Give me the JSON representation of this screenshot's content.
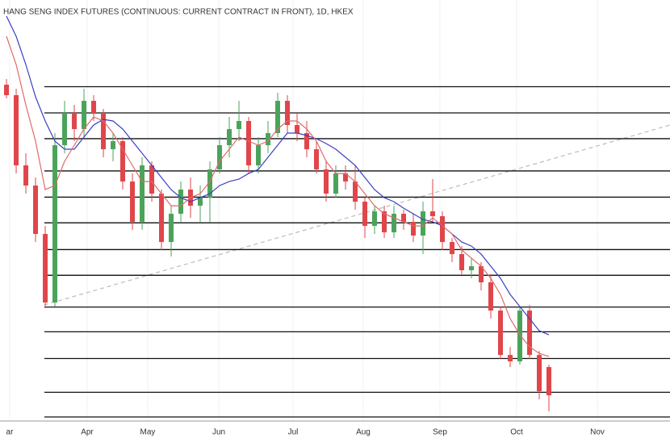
{
  "chart_data": {
    "type": "candlestick",
    "title": "HANG SENG INDEX FUTURES (CONTINUOUS: CURRENT CONTRACT IN FRONT), 1D, HKEX",
    "ylim": [
      15900,
      24250
    ],
    "xlim": [
      -0.67,
      68.5
    ],
    "xticks": [
      {
        "value": 0.33,
        "label": "ar"
      },
      {
        "value": 8.33,
        "label": "Apr"
      },
      {
        "value": 14.58,
        "label": "May"
      },
      {
        "value": 21.92,
        "label": "Jun"
      },
      {
        "value": 29.58,
        "label": "Jul"
      },
      {
        "value": 36.83,
        "label": "Aug"
      },
      {
        "value": 44.75,
        "label": "Sep"
      },
      {
        "value": 52.67,
        "label": "Oct"
      },
      {
        "value": 61,
        "label": "Nov"
      }
    ],
    "up_color": "#4ba35a",
    "down_color": "#e0454a",
    "ohlc": [
      [
        22570,
        22682,
        22298,
        22362
      ],
      [
        22362,
        22490,
        20810,
        20970
      ],
      [
        20970,
        21210,
        20410,
        20570
      ],
      [
        20570,
        20730,
        19450,
        19610
      ],
      [
        19610,
        19770,
        18138,
        18250
      ],
      [
        18250,
        21610,
        18170,
        21370
      ],
      [
        21370,
        22250,
        21210,
        22010
      ],
      [
        22010,
        22170,
        21450,
        21690
      ],
      [
        21690,
        22490,
        21530,
        22250
      ],
      [
        22250,
        22362,
        21850,
        22010
      ],
      [
        22010,
        22090,
        21130,
        21290
      ],
      [
        21290,
        21610,
        21050,
        21450
      ],
      [
        21450,
        21530,
        20490,
        20650
      ],
      [
        20650,
        20810,
        19690,
        19850
      ],
      [
        19850,
        21130,
        19690,
        20970
      ],
      [
        20970,
        21050,
        20250,
        20410
      ],
      [
        20410,
        20490,
        19290,
        19450
      ],
      [
        19450,
        20170,
        19162,
        20010
      ],
      [
        20010,
        20650,
        19850,
        20490
      ],
      [
        20490,
        20730,
        19930,
        20170
      ],
      [
        20170,
        20570,
        19850,
        20330
      ],
      [
        20330,
        21050,
        19850,
        20890
      ],
      [
        20890,
        21530,
        20810,
        21370
      ],
      [
        21370,
        21930,
        21130,
        21690
      ],
      [
        21690,
        22250,
        21450,
        21850
      ],
      [
        21850,
        21930,
        20810,
        20970
      ],
      [
        20970,
        21530,
        20810,
        21370
      ],
      [
        21370,
        21850,
        21210,
        21610
      ],
      [
        21610,
        22410,
        21530,
        22250
      ],
      [
        22250,
        22362,
        21610,
        21770
      ],
      [
        21770,
        22010,
        21450,
        21610
      ],
      [
        21610,
        21850,
        21130,
        21290
      ],
      [
        21290,
        21450,
        20810,
        20890
      ],
      [
        20890,
        21050,
        20250,
        20410
      ],
      [
        20410,
        20970,
        20330,
        20810
      ],
      [
        20810,
        20970,
        20490,
        20650
      ],
      [
        20650,
        20970,
        20090,
        20250
      ],
      [
        20250,
        20330,
        19530,
        19770
      ],
      [
        19770,
        20170,
        19610,
        20058
      ],
      [
        20058,
        20170,
        19530,
        19642
      ],
      [
        19642,
        20170,
        19530,
        20010
      ],
      [
        20010,
        20090,
        19690,
        19850
      ],
      [
        19850,
        20010,
        19450,
        19578
      ],
      [
        19578,
        20250,
        19210,
        20058
      ],
      [
        20058,
        20698,
        19850,
        19962
      ],
      [
        19962,
        20058,
        19290,
        19450
      ],
      [
        19450,
        19530,
        19050,
        19210
      ],
      [
        19210,
        19370,
        18810,
        18890
      ],
      [
        18890,
        19130,
        18730,
        18970
      ],
      [
        18970,
        19050,
        18490,
        18650
      ],
      [
        18650,
        18810,
        17930,
        18090
      ],
      [
        18090,
        18170,
        17130,
        17210
      ],
      [
        17210,
        17370,
        16970,
        17082
      ],
      [
        17082,
        18170,
        17018,
        18090
      ],
      [
        18090,
        18202,
        17130,
        17210
      ],
      [
        17210,
        17290,
        16330,
        16490
      ],
      [
        16970,
        17018,
        16090,
        16410
      ]
    ],
    "series": [
      {
        "color": "#3b3fc4",
        "values": [
          23930,
          23530,
          22970,
          22330,
          21850,
          21450,
          21290,
          21290,
          21530,
          21770,
          21882,
          21850,
          21690,
          21450,
          21210,
          20970,
          20730,
          20490,
          20330,
          20250,
          20330,
          20410,
          20570,
          20650,
          20698,
          20810,
          20890,
          21130,
          21370,
          21610,
          21610,
          21562,
          21498,
          21402,
          21290,
          21130,
          20970,
          20730,
          20490,
          20330,
          20250,
          20122,
          20010,
          19898,
          19850,
          19770,
          19610,
          19450,
          19370,
          19210,
          18970,
          18730,
          18410,
          18170,
          17930,
          17690,
          17610
        ]
      },
      {
        "color": "#e06a6a",
        "values": [
          23530,
          22970,
          22170,
          21450,
          20490,
          20570,
          21050,
          21370,
          21690,
          21930,
          21850,
          21610,
          21290,
          20970,
          20650,
          20650,
          20410,
          20170,
          20170,
          20330,
          20410,
          20650,
          21050,
          21290,
          21530,
          21450,
          21370,
          21450,
          21690,
          21850,
          21850,
          21690,
          21450,
          21050,
          20810,
          20810,
          20650,
          20410,
          20170,
          20010,
          19930,
          19850,
          19770,
          19770,
          19930,
          19770,
          19610,
          19290,
          19130,
          18970,
          18730,
          18410,
          17930,
          17610,
          17370,
          17242,
          17178
        ]
      }
    ],
    "levels": [
      22530,
      22010,
      21500,
      20860,
      20340,
      19830,
      19300,
      18790,
      18160,
      17670,
      17140,
      16470,
      15980
    ],
    "level_color": "#111111",
    "trendline": {
      "x": [
        3.9,
        68.5
      ],
      "y": [
        18202,
        21770
      ],
      "color": "#bbbbbb"
    },
    "grid": true
  }
}
